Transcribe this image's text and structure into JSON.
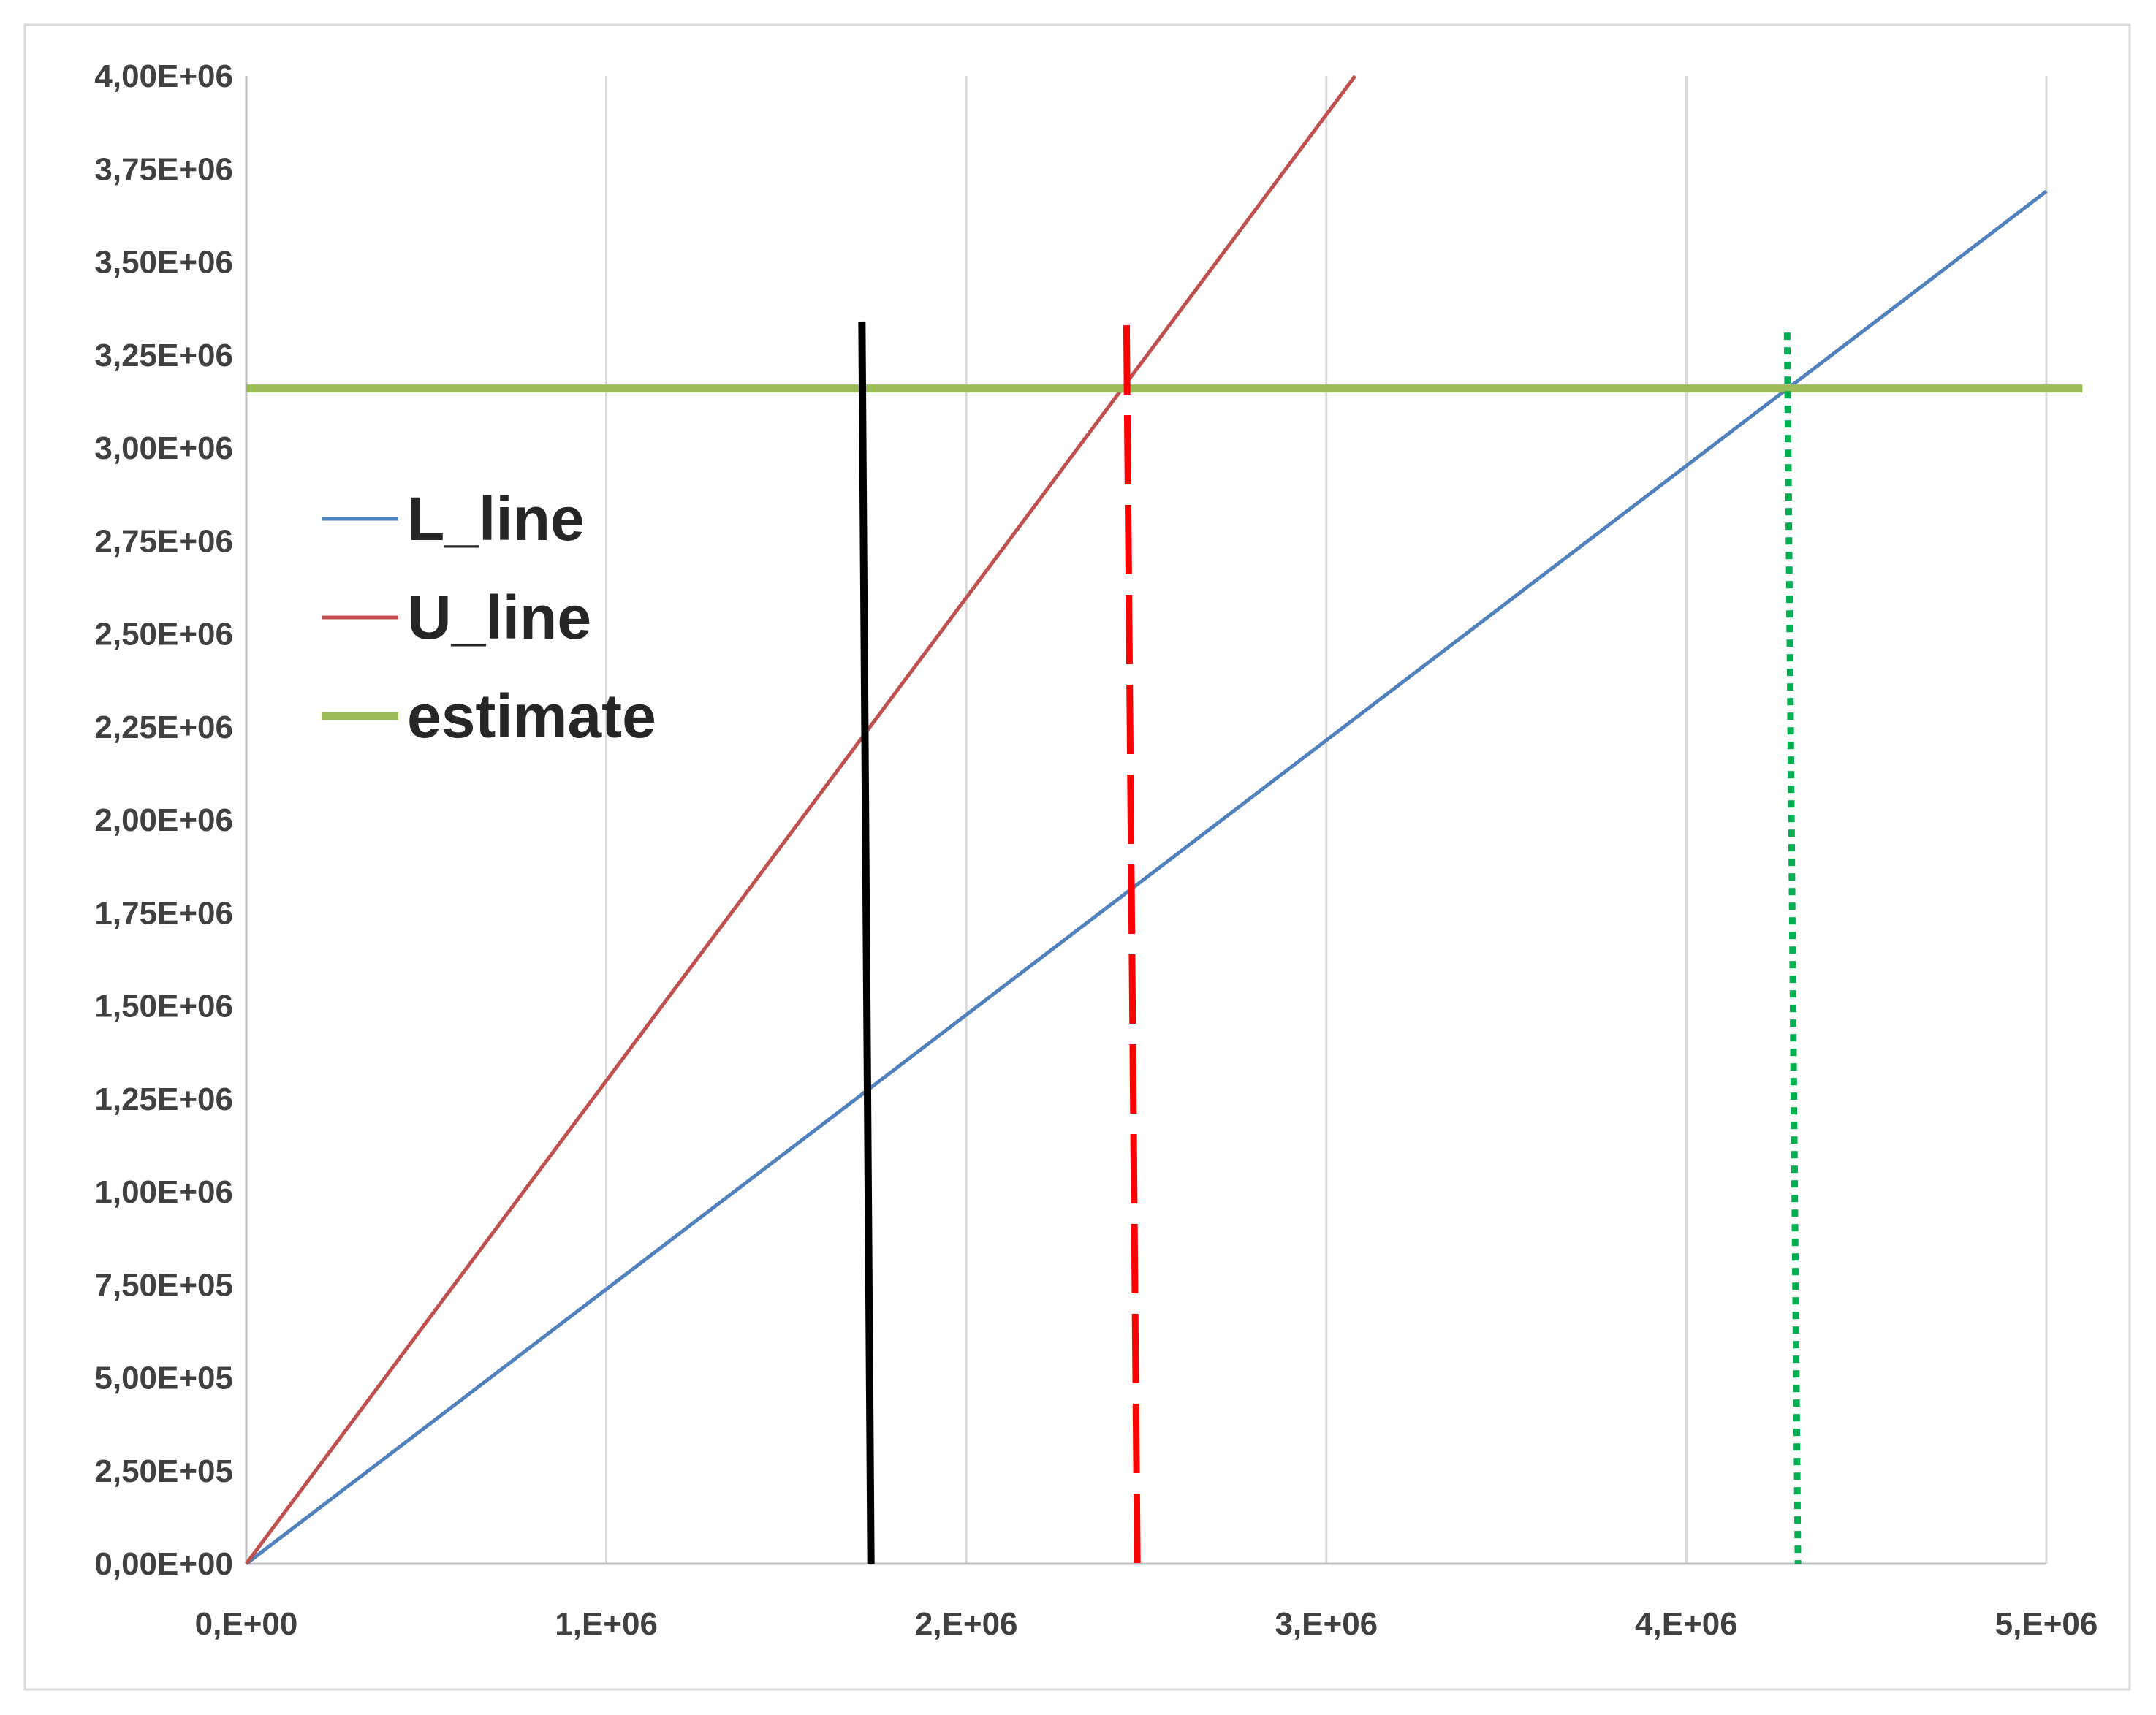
{
  "chart_data": {
    "type": "line",
    "title": "",
    "xlabel": "",
    "ylabel": "",
    "xlim": [
      0,
      5000000
    ],
    "ylim": [
      0,
      4000000
    ],
    "grid": "vertical",
    "legend_position": "upper-left",
    "x_ticks": [
      {
        "value": 0,
        "label": "0,E+00"
      },
      {
        "value": 1000000,
        "label": "1,E+06"
      },
      {
        "value": 2000000,
        "label": "2,E+06"
      },
      {
        "value": 3000000,
        "label": "3,E+06"
      },
      {
        "value": 4000000,
        "label": "4,E+06"
      },
      {
        "value": 5000000,
        "label": "5,E+06"
      }
    ],
    "y_ticks": [
      {
        "value": 0,
        "label": "0,00E+00"
      },
      {
        "value": 250000,
        "label": "2,50E+05"
      },
      {
        "value": 500000,
        "label": "5,00E+05"
      },
      {
        "value": 750000,
        "label": "7,50E+05"
      },
      {
        "value": 1000000,
        "label": "1,00E+06"
      },
      {
        "value": 1250000,
        "label": "1,25E+06"
      },
      {
        "value": 1500000,
        "label": "1,50E+06"
      },
      {
        "value": 1750000,
        "label": "1,75E+06"
      },
      {
        "value": 2000000,
        "label": "2,00E+06"
      },
      {
        "value": 2250000,
        "label": "2,25E+06"
      },
      {
        "value": 2500000,
        "label": "2,50E+06"
      },
      {
        "value": 2750000,
        "label": "2,75E+06"
      },
      {
        "value": 3000000,
        "label": "3,00E+06"
      },
      {
        "value": 3250000,
        "label": "3,25E+06"
      },
      {
        "value": 3500000,
        "label": "3,50E+06"
      },
      {
        "value": 3750000,
        "label": "3,75E+06"
      },
      {
        "value": 4000000,
        "label": "4,00E+06"
      }
    ],
    "series": [
      {
        "name": "L_line",
        "color": "#4f81bd",
        "x": [
          0,
          5000000
        ],
        "y": [
          0,
          3690000
        ]
      },
      {
        "name": "U_line",
        "color": "#c0504d",
        "x": [
          0,
          3080000
        ],
        "y": [
          0,
          4000000
        ]
      },
      {
        "name": "estimate",
        "color": "#9bbb59",
        "x": [
          0,
          5100000
        ],
        "y": [
          3160000,
          3160000
        ]
      }
    ],
    "vertical_markers": [
      {
        "color": "#000000",
        "style": "solid",
        "x": [
          1710000,
          1735000
        ],
        "y": [
          3340000,
          0
        ]
      },
      {
        "color": "#ff0000",
        "style": "dashed",
        "x": [
          2445000,
          2475000
        ],
        "y": [
          3330000,
          0
        ]
      },
      {
        "color": "#00b050",
        "style": "dotted",
        "x": [
          4280000,
          4310000
        ],
        "y": [
          3310000,
          0
        ]
      }
    ]
  }
}
